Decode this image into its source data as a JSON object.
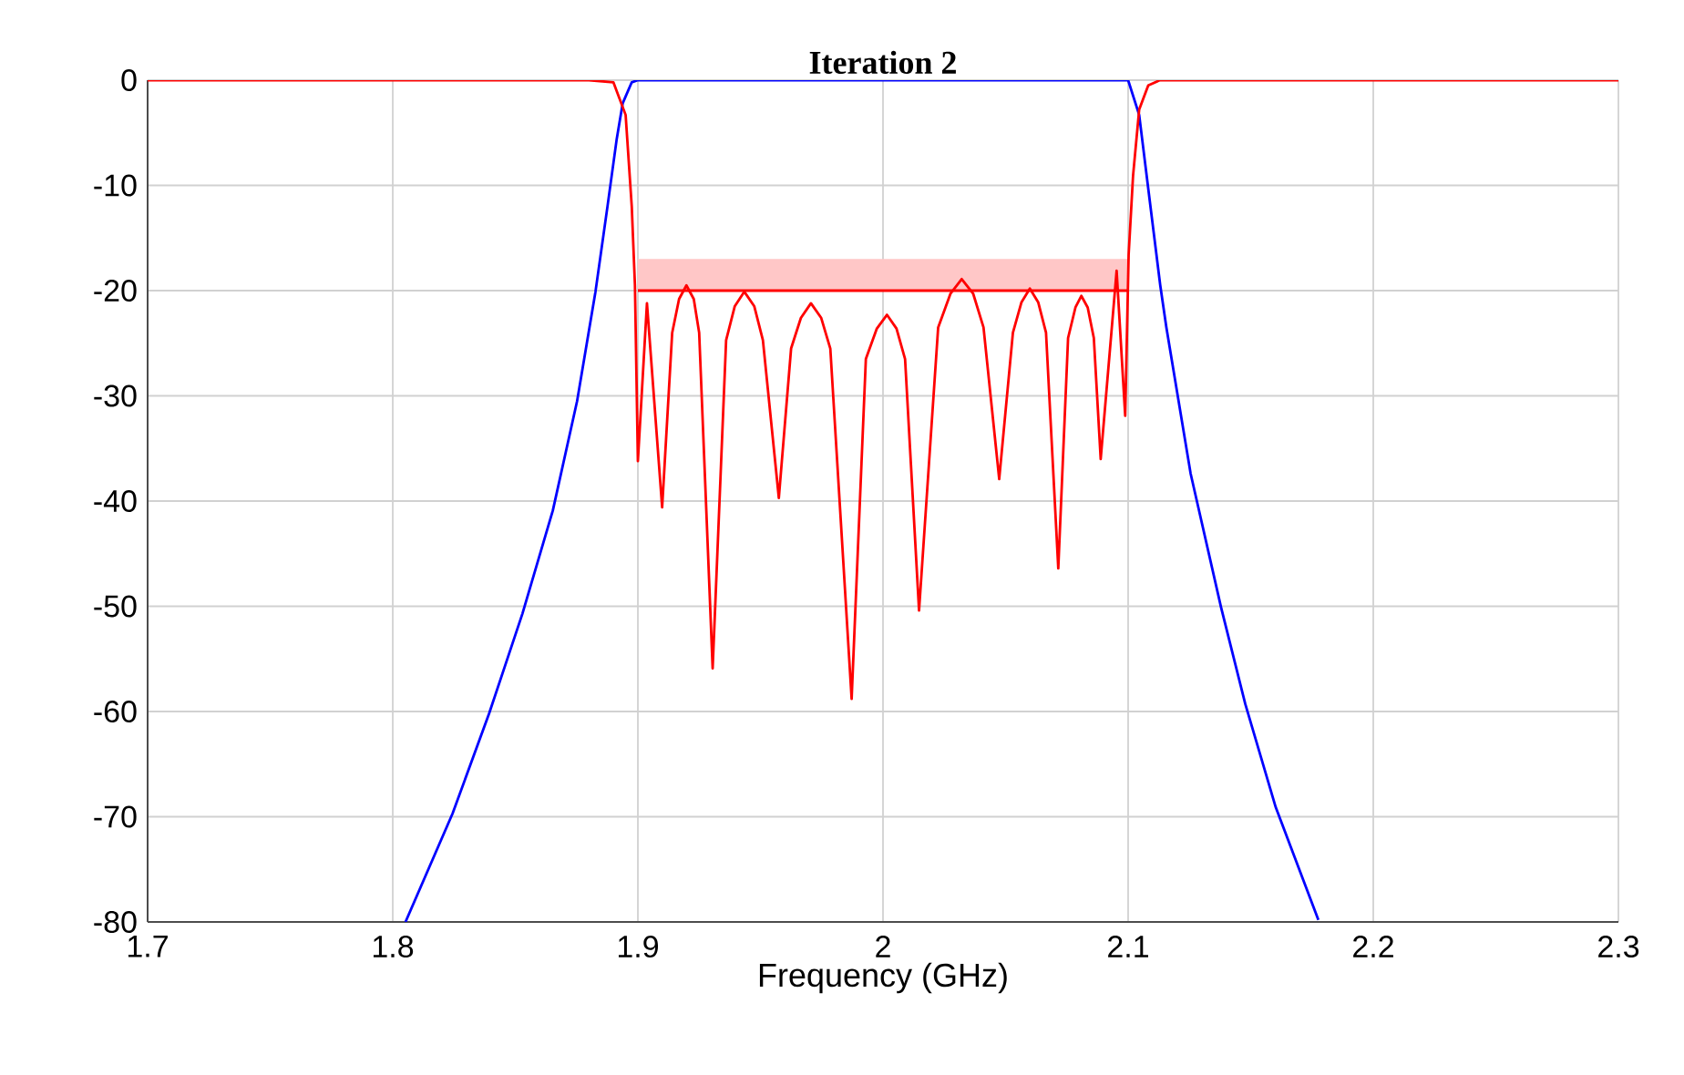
{
  "chart_data": {
    "type": "line",
    "title": "Iteration 2",
    "xlabel": "Frequency (GHz)",
    "xlim": [
      1.7,
      2.3
    ],
    "ylim": [
      -80,
      0
    ],
    "xticks": [
      1.7,
      1.8,
      1.9,
      2,
      2.1,
      2.2,
      2.3
    ],
    "yticks": [
      0,
      -10,
      -20,
      -30,
      -40,
      -50,
      -60,
      -70,
      -80
    ],
    "grid": true,
    "line_style": "solid",
    "marker": "none",
    "series": [
      {
        "type": "line",
        "color": "#ff0000",
        "x": [
          1.9,
          2.1
        ],
        "values": [
          -20,
          -20
        ],
        "lower": [
          -20,
          -20
        ],
        "upper": [
          -17,
          -17
        ]
      },
      {
        "color": "#0000ff",
        "x": [
          1.8052,
          1.8244,
          1.8393,
          1.8529,
          1.8653,
          1.8752,
          1.8827,
          1.8876,
          1.8913,
          1.8938,
          1.8975,
          1.9,
          2.0,
          2.1,
          2.1045,
          2.1082,
          2.1131,
          2.1156,
          2.1255,
          2.1379,
          2.1478,
          2.1602,
          2.1776
        ],
        "values": [
          -80,
          -69.7,
          -60.2,
          -50.7,
          -40.9,
          -30.5,
          -20.1,
          -12,
          -5.7,
          -2.2,
          -0.2,
          0,
          0,
          0,
          -3.3,
          -10.3,
          -19.5,
          -23.5,
          -37.4,
          -50.1,
          -59.3,
          -69.1,
          -79.8
        ]
      },
      {
        "color": "#ff0000",
        "x": [
          1.7,
          1.88,
          1.89,
          1.895,
          1.8975,
          1.8988,
          1.9,
          1.9037,
          1.9099,
          1.914,
          1.9168,
          1.9198,
          1.9228,
          1.925,
          1.9305,
          1.936,
          1.9395,
          1.9434,
          1.9475,
          1.951,
          1.9575,
          1.9625,
          1.9665,
          1.9706,
          1.9748,
          1.9785,
          1.9872,
          1.993,
          1.9975,
          2.0016,
          2.0055,
          2.009,
          2.0147,
          2.0225,
          2.0275,
          2.0321,
          2.0368,
          2.041,
          2.0474,
          2.053,
          2.0565,
          2.0599,
          2.0633,
          2.0665,
          2.0715,
          2.0755,
          2.0785,
          2.0809,
          2.0835,
          2.086,
          2.0888,
          2.0953,
          2.0988,
          2.1002,
          2.102,
          2.1045,
          2.1082,
          2.113,
          2.3
        ],
        "values": [
          0,
          0,
          -0.2,
          -3.3,
          -12,
          -19.5,
          -36.2,
          -21.2,
          -40.6,
          -24,
          -20.8,
          -19.5,
          -20.8,
          -24,
          -55.9,
          -24.7,
          -21.5,
          -20.1,
          -21.5,
          -24.7,
          -39.7,
          -25.5,
          -22.6,
          -21.2,
          -22.6,
          -25.5,
          -58.8,
          -26.5,
          -23.6,
          -22.3,
          -23.6,
          -26.5,
          -50.4,
          -23.5,
          -20.3,
          -18.9,
          -20.3,
          -23.5,
          -37.9,
          -24,
          -21.1,
          -19.8,
          -21.1,
          -24,
          -46.4,
          -24.5,
          -21.6,
          -20.5,
          -21.6,
          -24.5,
          -36,
          -18.1,
          -31.9,
          -16.6,
          -9.1,
          -2.8,
          -0.5,
          0,
          0
        ]
      }
    ]
  }
}
